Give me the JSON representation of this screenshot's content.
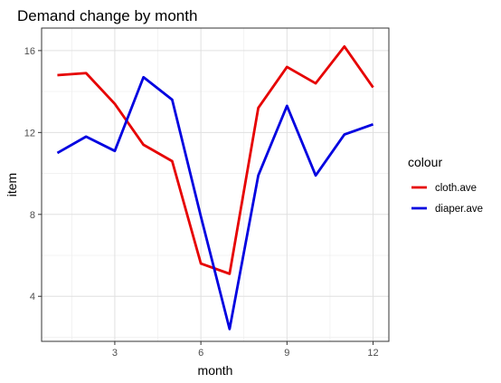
{
  "chart_data": {
    "type": "line",
    "title": "Demand change by month",
    "xlabel": "month",
    "ylabel": "item",
    "xlim": [
      0.45,
      12.55
    ],
    "ylim": [
      1.8,
      17.1
    ],
    "xticks": [
      3,
      6,
      9,
      12
    ],
    "yticks": [
      4,
      8,
      12,
      16
    ],
    "grid": true,
    "legend": {
      "title": "colour",
      "position": "right"
    },
    "x": [
      1,
      2,
      3,
      4,
      5,
      6,
      7,
      8,
      9,
      10,
      11,
      12
    ],
    "series": [
      {
        "name": "cloth.ave",
        "color": "#e60000",
        "values": [
          14.8,
          14.9,
          13.4,
          11.4,
          10.6,
          5.6,
          5.1,
          13.2,
          15.2,
          14.4,
          16.2,
          14.2
        ]
      },
      {
        "name": "diaper.ave",
        "color": "#0000e0",
        "values": [
          11.0,
          11.8,
          11.1,
          14.7,
          13.6,
          7.9,
          2.4,
          9.9,
          13.3,
          9.9,
          11.9,
          12.4
        ]
      }
    ]
  }
}
